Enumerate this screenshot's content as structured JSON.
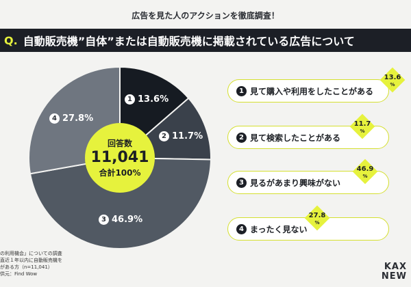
{
  "header": {
    "caption": "広告を見た人のアクションを徹底調査！",
    "question_prefix": "Q.",
    "question": "自動販売機”自体”または自動販売機に掲載されている広告について"
  },
  "chart_data": {
    "type": "pie",
    "center": {
      "title": "回答数",
      "value": "11,041",
      "total": "合計100%"
    },
    "slices": [
      {
        "num": "1",
        "label": "見て購入や利用をしたことがある",
        "value": 13.6,
        "value_text": "13.6%",
        "color": "#161b22"
      },
      {
        "num": "2",
        "label": "見て検索したことがある",
        "value": 11.7,
        "value_text": "11.7%",
        "color": "#3a414b"
      },
      {
        "num": "3",
        "label": "見るがあまり興味がない",
        "value": 46.9,
        "value_text": "46.9%",
        "color": "#515963"
      },
      {
        "num": "4",
        "label": "まったく見ない",
        "value": 27.8,
        "value_text": "27.8%",
        "color": "#6f7680"
      }
    ],
    "badge_values": [
      "13.6",
      "11.7",
      "46.9",
      "27.8"
    ],
    "unit": "%"
  },
  "colors": {
    "accent": "#e6f23d",
    "dark": "#1c1f26"
  },
  "footnote": {
    "line1": "の利用機会」についての調査",
    "line2": "直近１年以内に自動販売機を",
    "line3": "がある方（n=11,041）",
    "line4": "供元：Find Wow"
  },
  "logo": {
    "line1": "KAX",
    "line2": "NEW"
  }
}
